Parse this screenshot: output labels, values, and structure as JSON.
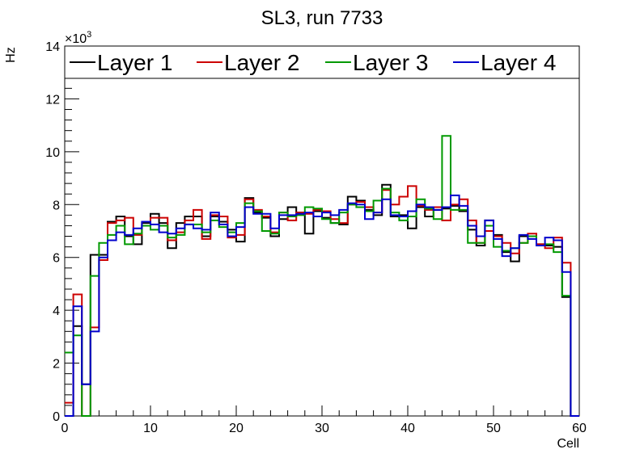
{
  "chart_data": {
    "type": "step-histogram",
    "title": "SL3, run 7733",
    "xlabel": "Cell",
    "ylabel": "Hz",
    "y_multiplier": "×10",
    "y_multiplier_exp": "3",
    "xlim": [
      0,
      60
    ],
    "ylim": [
      0,
      14000
    ],
    "x_ticks": [
      0,
      10,
      20,
      30,
      40,
      50,
      60
    ],
    "y_ticks": [
      0,
      2000,
      4000,
      6000,
      8000,
      10000,
      12000,
      14000
    ],
    "x_tick_labels": [
      "0",
      "10",
      "20",
      "30",
      "40",
      "50",
      "60"
    ],
    "y_tick_labels": [
      "0",
      "2",
      "4",
      "6",
      "8",
      "10",
      "12",
      "14"
    ],
    "legend_position": "top",
    "series": [
      {
        "name": "Layer 1",
        "color": "#000000",
        "values": [
          0,
          3400,
          1200,
          6100,
          6100,
          7350,
          7550,
          6800,
          6500,
          7300,
          7650,
          7300,
          6350,
          7300,
          7550,
          7550,
          6800,
          7550,
          7350,
          7050,
          6600,
          8250,
          7700,
          7500,
          6800,
          7450,
          7900,
          7700,
          6900,
          7750,
          7500,
          7300,
          7250,
          8300,
          8150,
          7800,
          7600,
          8750,
          7550,
          7600,
          7100,
          7900,
          7550,
          7800,
          7850,
          7950,
          7750,
          7050,
          6450,
          7400,
          6850,
          6200,
          5850,
          6800,
          6800,
          6500,
          6450,
          6400,
          4500,
          0
        ]
      },
      {
        "name": "Layer 2",
        "color": "#cc0000",
        "values": [
          500,
          4600,
          0,
          3350,
          5900,
          7300,
          7400,
          7500,
          6850,
          7200,
          7500,
          7500,
          6650,
          6950,
          7400,
          7800,
          6700,
          7600,
          7550,
          6750,
          6850,
          8200,
          7800,
          7550,
          6950,
          7700,
          7400,
          7700,
          7650,
          7800,
          7750,
          7450,
          7300,
          8000,
          8100,
          7900,
          7700,
          8550,
          8000,
          8300,
          8700,
          7950,
          7800,
          7900,
          7400,
          8000,
          8200,
          7400,
          6550,
          7000,
          6800,
          6550,
          6150,
          6550,
          6900,
          6500,
          6350,
          6750,
          5800,
          0
        ]
      },
      {
        "name": "Layer 3",
        "color": "#009900",
        "values": [
          2400,
          3050,
          0,
          5300,
          6550,
          6850,
          7200,
          6500,
          6900,
          7200,
          7050,
          7200,
          6750,
          6850,
          7250,
          7250,
          6950,
          7400,
          7150,
          6950,
          7300,
          8050,
          7750,
          7000,
          6900,
          7700,
          7550,
          7600,
          7900,
          7850,
          7450,
          7300,
          7700,
          8000,
          7900,
          7750,
          8150,
          8600,
          7700,
          7400,
          7550,
          8200,
          7850,
          7450,
          10600,
          7800,
          7800,
          6550,
          6550,
          7200,
          6400,
          6250,
          6350,
          6550,
          6800,
          6450,
          6500,
          6200,
          4550,
          0
        ]
      },
      {
        "name": "Layer 4",
        "color": "#0000cc",
        "values": [
          0,
          4150,
          1200,
          3200,
          6000,
          6650,
          6950,
          6850,
          7100,
          7350,
          7250,
          6950,
          6900,
          7100,
          7250,
          7100,
          7050,
          7700,
          7250,
          6800,
          7150,
          7900,
          7650,
          7650,
          7100,
          7600,
          7600,
          7650,
          7700,
          7550,
          7700,
          7600,
          7800,
          8050,
          8000,
          7450,
          7700,
          8200,
          7600,
          7550,
          7750,
          8000,
          7900,
          7800,
          7900,
          8350,
          7950,
          7200,
          6800,
          7400,
          6700,
          6050,
          6350,
          6850,
          6700,
          6450,
          6750,
          6650,
          5450,
          0
        ]
      }
    ]
  }
}
